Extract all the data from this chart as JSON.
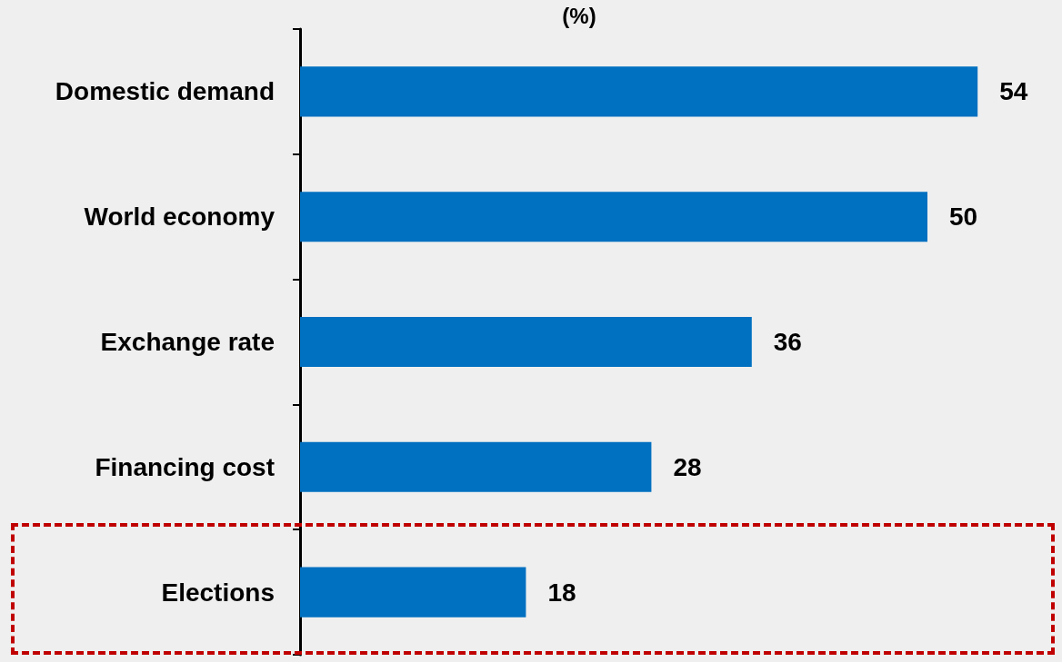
{
  "chart_data": {
    "type": "bar",
    "orientation": "horizontal",
    "title": "(%)",
    "categories": [
      "Domestic demand",
      "World economy",
      "Exchange rate",
      "Financing cost",
      "Elections"
    ],
    "values": [
      54,
      50,
      36,
      28,
      18
    ],
    "color": "#0070c0",
    "data_labels": true,
    "tick_labels": "y"
  }
}
